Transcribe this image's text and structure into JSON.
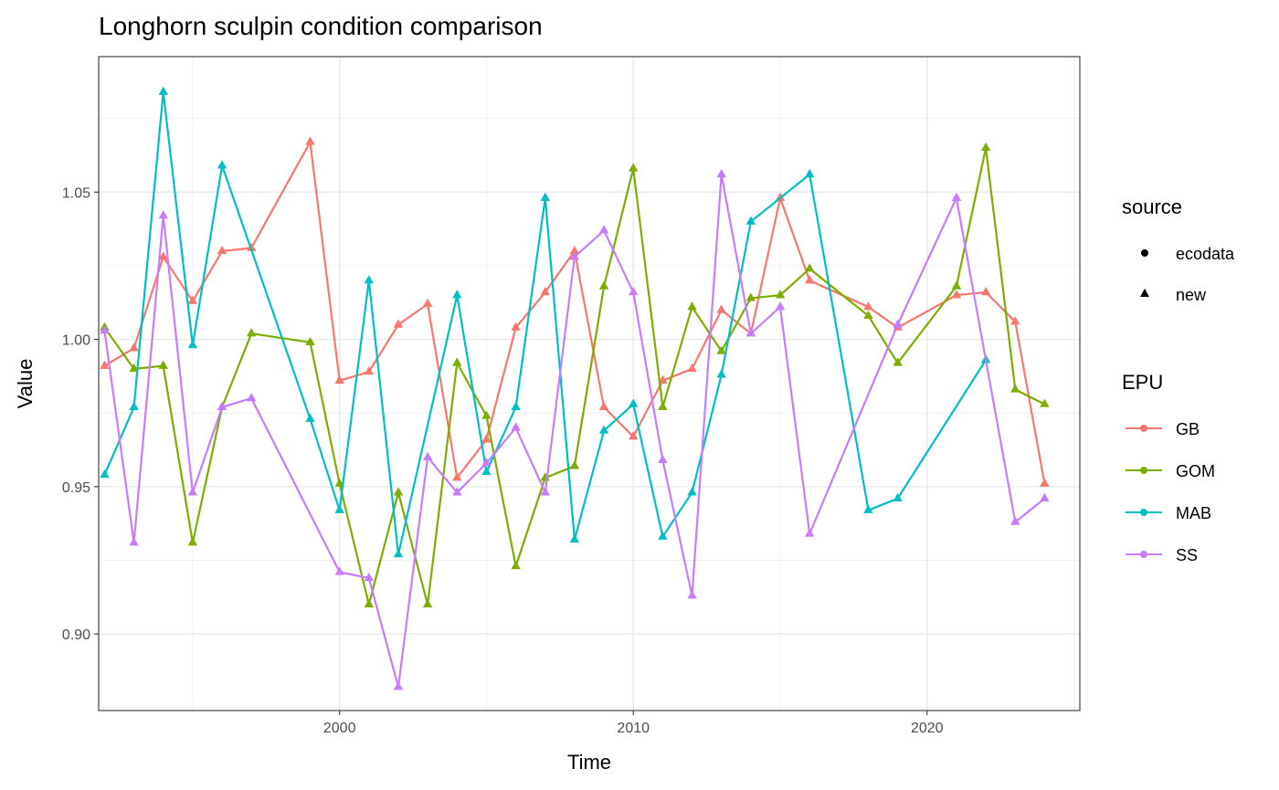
{
  "chart_data": {
    "type": "line",
    "title": "Longhorn sculpin condition comparison",
    "xlabel": "Time",
    "ylabel": "Value",
    "xlim": [
      1991.8,
      2025.2
    ],
    "ylim": [
      0.874,
      1.096
    ],
    "x_ticks": [
      2000,
      2010,
      2020
    ],
    "x_tick_labels": [
      "2000",
      "2010",
      "2020"
    ],
    "y_ticks": [
      0.9,
      0.95,
      1.0,
      1.05
    ],
    "y_tick_labels": [
      "0.90",
      "0.95",
      "1.00",
      "1.05"
    ],
    "grid": true,
    "legend_position": "right",
    "shape_legend": {
      "title": "source",
      "items": [
        {
          "label": "ecodata",
          "shape": "circle"
        },
        {
          "label": "new",
          "shape": "triangle"
        }
      ]
    },
    "color_legend": {
      "title": "EPU",
      "items": [
        {
          "label": "GB",
          "color": "#F8766D"
        },
        {
          "label": "GOM",
          "color": "#7CAE00"
        },
        {
          "label": "MAB",
          "color": "#00BFC4"
        },
        {
          "label": "SS",
          "color": "#C77CFF"
        }
      ]
    },
    "series": [
      {
        "name": "GB",
        "color": "#F8766D",
        "points": [
          [
            1992,
            0.991
          ],
          [
            1993,
            0.997
          ],
          [
            1994,
            1.028
          ],
          [
            1995,
            1.013
          ],
          [
            1996,
            1.03
          ],
          [
            1997,
            1.031
          ],
          [
            1999,
            1.067
          ],
          [
            2000,
            0.986
          ],
          [
            2001,
            0.989
          ],
          [
            2002,
            1.005
          ],
          [
            2003,
            1.012
          ],
          [
            2004,
            0.953
          ],
          [
            2005,
            0.966
          ],
          [
            2006,
            1.004
          ],
          [
            2007,
            1.016
          ],
          [
            2008,
            1.03
          ],
          [
            2009,
            0.977
          ],
          [
            2010,
            0.967
          ],
          [
            2011,
            0.986
          ],
          [
            2012,
            0.99
          ],
          [
            2013,
            1.01
          ],
          [
            2014,
            1.002
          ],
          [
            2015,
            1.048
          ],
          [
            2016,
            1.02
          ],
          [
            2018,
            1.011
          ],
          [
            2019,
            1.004
          ],
          [
            2021,
            1.015
          ],
          [
            2022,
            1.016
          ],
          [
            2023,
            1.006
          ],
          [
            2024,
            0.951
          ]
        ]
      },
      {
        "name": "GOM",
        "color": "#7CAE00",
        "points": [
          [
            1992,
            1.004
          ],
          [
            1993,
            0.99
          ],
          [
            1994,
            0.991
          ],
          [
            1995,
            0.931
          ],
          [
            1996,
            0.977
          ],
          [
            1997,
            1.002
          ],
          [
            1999,
            0.999
          ],
          [
            2000,
            0.951
          ],
          [
            2001,
            0.91
          ],
          [
            2002,
            0.948
          ],
          [
            2003,
            0.91
          ],
          [
            2004,
            0.992
          ],
          [
            2005,
            0.974
          ],
          [
            2006,
            0.923
          ],
          [
            2007,
            0.953
          ],
          [
            2008,
            0.957
          ],
          [
            2009,
            1.018
          ],
          [
            2010,
            1.058
          ],
          [
            2011,
            0.977
          ],
          [
            2012,
            1.011
          ],
          [
            2013,
            0.996
          ],
          [
            2014,
            1.014
          ],
          [
            2015,
            1.015
          ],
          [
            2016,
            1.024
          ],
          [
            2018,
            1.008
          ],
          [
            2019,
            0.992
          ],
          [
            2021,
            1.018
          ],
          [
            2022,
            1.065
          ],
          [
            2023,
            0.983
          ],
          [
            2024,
            0.978
          ]
        ]
      },
      {
        "name": "MAB",
        "color": "#00BFC4",
        "points": [
          [
            1992,
            0.954
          ],
          [
            1993,
            0.977
          ],
          [
            1994,
            1.084
          ],
          [
            1995,
            0.998
          ],
          [
            1996,
            1.059
          ],
          [
            1999,
            0.973
          ],
          [
            2000,
            0.942
          ],
          [
            2001,
            1.02
          ],
          [
            2002,
            0.927
          ],
          [
            2004,
            1.015
          ],
          [
            2005,
            0.955
          ],
          [
            2006,
            0.977
          ],
          [
            2007,
            1.048
          ],
          [
            2008,
            0.932
          ],
          [
            2009,
            0.969
          ],
          [
            2010,
            0.978
          ],
          [
            2011,
            0.933
          ],
          [
            2012,
            0.948
          ],
          [
            2013,
            0.988
          ],
          [
            2014,
            1.04
          ],
          [
            2016,
            1.056
          ],
          [
            2018,
            0.942
          ],
          [
            2019,
            0.946
          ],
          [
            2022,
            0.993
          ]
        ]
      },
      {
        "name": "SS",
        "color": "#C77CFF",
        "points": [
          [
            1992,
            1.003
          ],
          [
            1993,
            0.931
          ],
          [
            1994,
            1.042
          ],
          [
            1995,
            0.948
          ],
          [
            1996,
            0.977
          ],
          [
            1997,
            0.98
          ],
          [
            2000,
            0.921
          ],
          [
            2001,
            0.919
          ],
          [
            2002,
            0.882
          ],
          [
            2003,
            0.96
          ],
          [
            2004,
            0.948
          ],
          [
            2005,
            0.958
          ],
          [
            2006,
            0.97
          ],
          [
            2007,
            0.948
          ],
          [
            2008,
            1.028
          ],
          [
            2009,
            1.037
          ],
          [
            2010,
            1.016
          ],
          [
            2011,
            0.959
          ],
          [
            2012,
            0.913
          ],
          [
            2013,
            1.056
          ],
          [
            2014,
            1.002
          ],
          [
            2015,
            1.011
          ],
          [
            2016,
            0.934
          ],
          [
            2019,
            1.005
          ],
          [
            2021,
            1.048
          ],
          [
            2023,
            0.938
          ],
          [
            2024,
            0.946
          ]
        ]
      }
    ]
  }
}
